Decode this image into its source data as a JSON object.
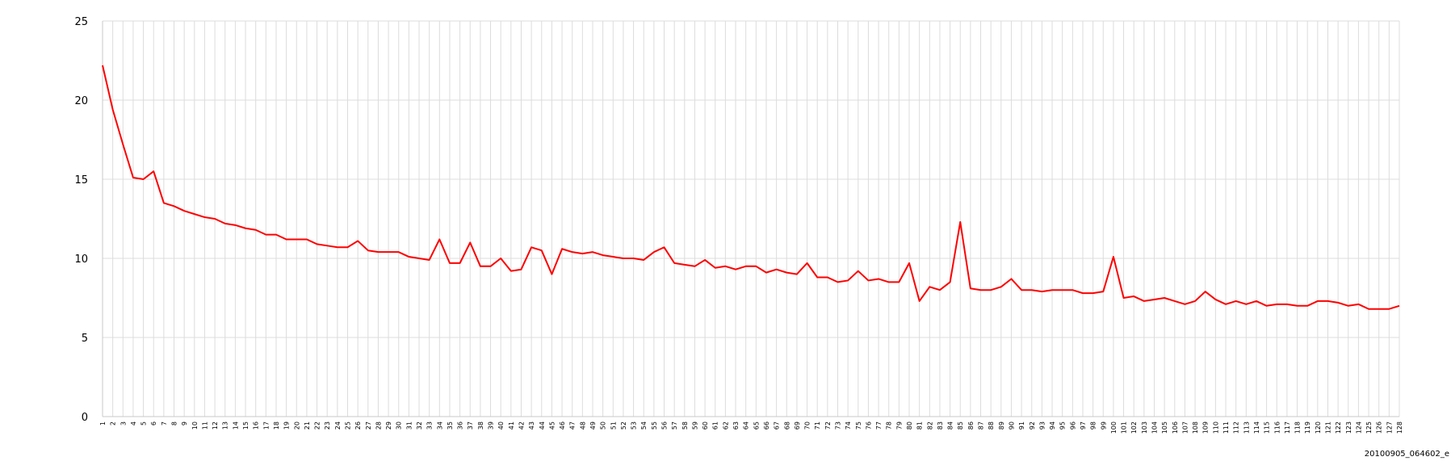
{
  "chart_data": {
    "type": "line",
    "title": "",
    "xlabel": "",
    "ylabel": "",
    "ylim": [
      0,
      25
    ],
    "yticks": [
      0,
      5,
      10,
      15,
      20,
      25
    ],
    "grid": true,
    "legend": "none",
    "line_color": "#ff0000",
    "x": [
      1,
      2,
      3,
      4,
      5,
      6,
      7,
      8,
      9,
      10,
      11,
      12,
      13,
      14,
      15,
      16,
      17,
      18,
      19,
      20,
      21,
      22,
      23,
      24,
      25,
      26,
      27,
      28,
      29,
      30,
      31,
      32,
      33,
      34,
      35,
      36,
      37,
      38,
      39,
      40,
      41,
      42,
      43,
      44,
      45,
      46,
      47,
      48,
      49,
      50,
      51,
      52,
      53,
      54,
      55,
      56,
      57,
      58,
      59,
      60,
      61,
      62,
      63,
      64,
      65,
      66,
      67,
      68,
      69,
      70,
      71,
      72,
      73,
      74,
      75,
      76,
      77,
      78,
      79,
      80,
      81,
      82,
      83,
      84,
      85,
      86,
      87,
      88,
      89,
      90,
      91,
      92,
      93,
      94,
      95,
      96,
      97,
      98,
      99,
      100,
      101,
      102,
      103,
      104,
      105,
      106,
      107,
      108,
      109,
      110,
      111,
      112,
      113,
      114,
      115,
      116,
      117,
      118,
      119,
      120,
      121,
      122,
      123,
      124,
      125,
      126,
      127,
      128
    ],
    "series": [
      {
        "values": [
          22.2,
          19.4,
          17.2,
          15.1,
          15.0,
          15.5,
          13.5,
          13.3,
          13.0,
          12.8,
          12.6,
          12.5,
          12.2,
          12.1,
          11.9,
          11.8,
          11.5,
          11.5,
          11.2,
          11.2,
          11.2,
          10.9,
          10.8,
          10.7,
          10.7,
          11.1,
          10.5,
          10.4,
          10.4,
          10.4,
          10.1,
          10.0,
          9.9,
          11.2,
          9.7,
          9.7,
          11.0,
          9.5,
          9.5,
          10.0,
          9.2,
          9.3,
          10.7,
          10.5,
          9.0,
          10.6,
          10.4,
          10.3,
          10.4,
          10.2,
          10.1,
          10.0,
          10.0,
          9.9,
          10.4,
          10.7,
          9.7,
          9.6,
          9.5,
          9.9,
          9.4,
          9.5,
          9.3,
          9.5,
          9.5,
          9.1,
          9.3,
          9.1,
          9.0,
          9.7,
          8.8,
          8.8,
          8.5,
          8.6,
          9.2,
          8.6,
          8.7,
          8.5,
          8.5,
          9.7,
          7.3,
          8.2,
          8.0,
          8.5,
          12.3,
          8.1,
          8.0,
          8.0,
          8.2,
          8.7,
          8.0,
          8.0,
          7.9,
          8.0,
          8.0,
          8.0,
          7.8,
          7.8,
          7.9,
          10.1,
          7.5,
          7.6,
          7.3,
          7.4,
          7.5,
          7.3,
          7.1,
          7.3,
          7.9,
          7.4,
          7.1,
          7.3,
          7.1,
          7.3,
          7.0,
          7.1,
          7.1,
          7.0,
          7.0,
          7.3,
          7.3,
          7.2,
          7.0,
          7.1,
          6.8,
          6.8,
          6.8,
          7.0
        ]
      }
    ]
  },
  "caption": "20100905_064602_e"
}
